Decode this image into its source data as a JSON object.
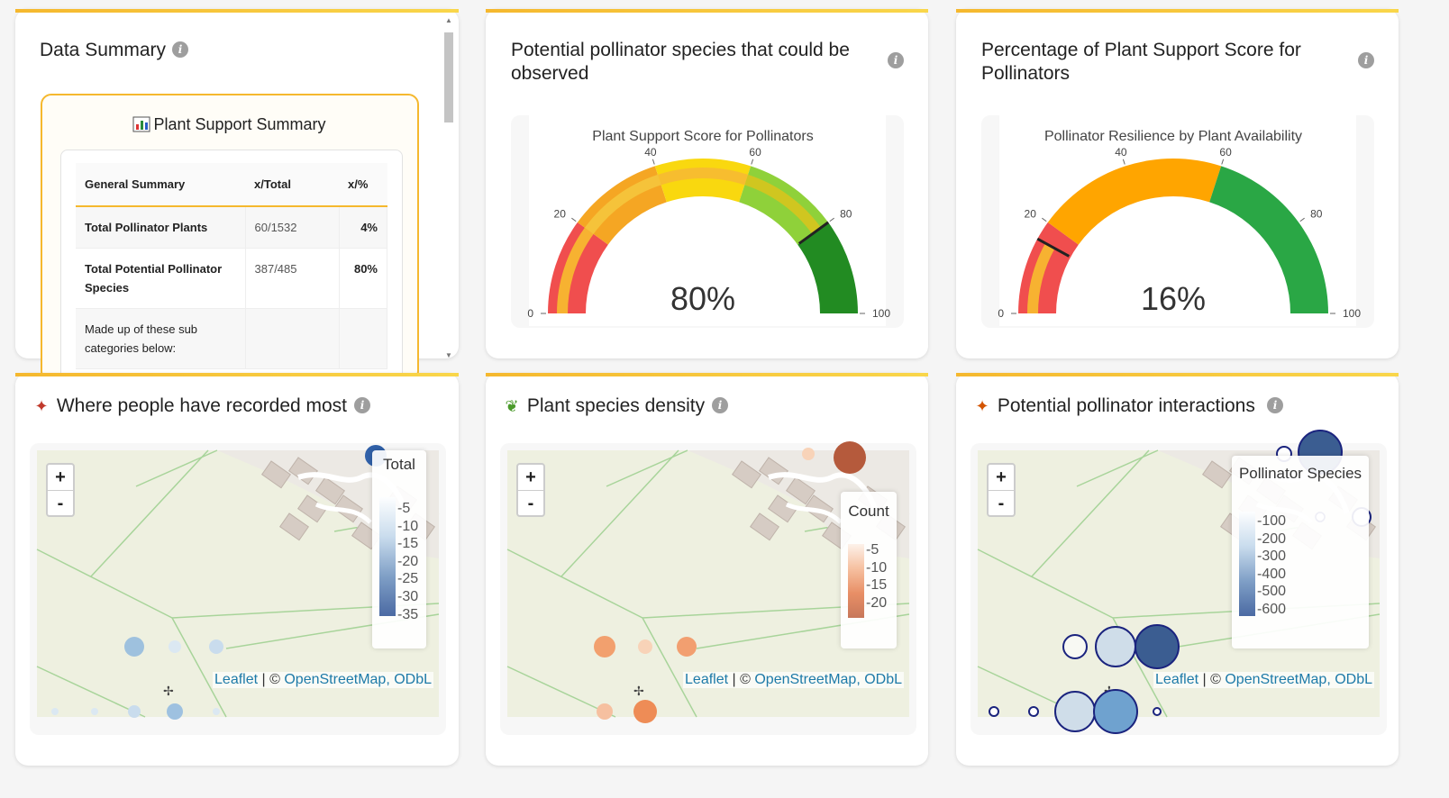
{
  "data_summary": {
    "title": "Data Summary",
    "box_title": "Plant Support Summary",
    "icon": "bar-chart-icon",
    "columns": [
      "General Summary",
      "x/Total",
      "x/%"
    ],
    "rows": [
      {
        "label": "Total Pollinator Plants",
        "ratio": "60/1532",
        "pct": "4%"
      },
      {
        "label": "Total Potential Pollinator Species",
        "ratio": "387/485",
        "pct": "80%"
      },
      {
        "label": "Made up of these sub categories below:",
        "ratio": "",
        "pct": ""
      }
    ]
  },
  "gauge1": {
    "card_title": "Potential pollinator species that could be observed",
    "chart_title": "Plant Support Score for Pollinators",
    "value_text": "80%",
    "value": 80,
    "ticks": [
      "0",
      "20",
      "40",
      "60",
      "80",
      "100"
    ]
  },
  "gauge2": {
    "card_title": "Percentage of Plant Support Score for Pollinators",
    "chart_title": "Pollinator Resilience by Plant Availability",
    "value_text": "16%",
    "value": 16,
    "ticks": [
      "0",
      "20",
      "40",
      "60",
      "80",
      "100"
    ]
  },
  "map1": {
    "title": "Where people have recorded most",
    "icon": "butterfly-icon",
    "legend_title": "Total",
    "legend_ticks": [
      "5",
      "10",
      "15",
      "20",
      "25",
      "30",
      "35"
    ]
  },
  "map2": {
    "title": "Plant species density",
    "icon": "seedling-icon",
    "legend_title": "Count",
    "legend_ticks": [
      "5",
      "10",
      "15",
      "20"
    ]
  },
  "map3": {
    "title": "Potential pollinator interactions",
    "icon": "butterfly-icon",
    "legend_title": "Pollinator Species",
    "legend_ticks": [
      "100",
      "200",
      "300",
      "400",
      "500",
      "600"
    ]
  },
  "map_common": {
    "zoom_in": "+",
    "zoom_out": "-",
    "leaflet": "Leaflet",
    "sep": " | © ",
    "osm": "OpenStreetMap, ODbL"
  },
  "info_glyph": "i"
}
